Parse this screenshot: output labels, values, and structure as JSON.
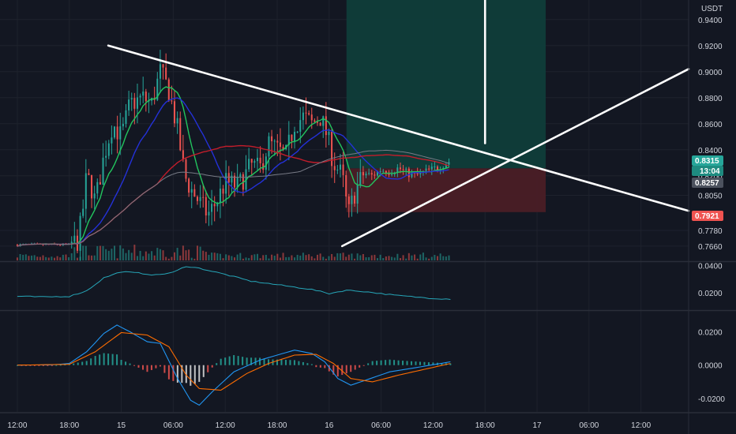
{
  "currency": "USDT",
  "colors": {
    "background": "#131722",
    "grid": "#1e222d",
    "up": "#26a69a",
    "down": "#ef5350",
    "ma_green": "#22c55e",
    "ma_blue": "#2431d9",
    "ma_red": "#c21d2b",
    "ma_gray": "#787b86",
    "rsi": "#26a6b8",
    "macd": "#2196f3",
    "signal": "#ff6d00",
    "target_zone": "#0f3d3a",
    "stop_zone": "#4a1e26",
    "trendline": "#ffffff"
  },
  "badges": {
    "current_price": "0.8315",
    "countdown": "13:04",
    "entry_price": "0.8257",
    "stop_price": "0.7921"
  },
  "chart_data": [
    {
      "type": "candlestick",
      "title": "",
      "ylabel": "USDT",
      "ylim": [
        0.755,
        0.955
      ],
      "y_ticks": [
        "0.7660",
        "0.7780",
        "0.8050",
        "0.8200",
        "0.8400",
        "0.8600",
        "0.8800",
        "0.9000",
        "0.9200",
        "0.9400"
      ],
      "y_tick_values": [
        0.766,
        0.778,
        0.805,
        0.82,
        0.84,
        0.86,
        0.88,
        0.9,
        0.92,
        0.94
      ],
      "x_ticks": [
        "12:00",
        "18:00",
        "15",
        "06:00",
        "12:00",
        "18:00",
        "16",
        "06:00",
        "12:00",
        "18:00",
        "17",
        "06:00",
        "12:00"
      ],
      "x_tick_hours": [
        0,
        6,
        12,
        18,
        24,
        30,
        36,
        42,
        48,
        54,
        60,
        66,
        72
      ],
      "x_range_hours": [
        -2.0,
        77.5
      ],
      "close_path": [
        [
          6.0,
          0.767
        ],
        [
          7.0,
          0.77
        ],
        [
          7.5,
          0.79
        ],
        [
          8.0,
          0.82
        ],
        [
          8.5,
          0.812
        ],
        [
          9.0,
          0.8
        ],
        [
          10.0,
          0.835
        ],
        [
          11.0,
          0.86
        ],
        [
          12.0,
          0.85
        ],
        [
          13.0,
          0.875
        ],
        [
          14.5,
          0.88
        ],
        [
          15.5,
          0.875
        ],
        [
          16.5,
          0.9
        ],
        [
          17.5,
          0.885
        ],
        [
          18.5,
          0.855
        ],
        [
          19.3,
          0.82
        ],
        [
          20.0,
          0.81
        ],
        [
          21.0,
          0.8
        ],
        [
          22.0,
          0.79
        ],
        [
          23.0,
          0.8
        ],
        [
          24.0,
          0.815
        ],
        [
          25.5,
          0.812
        ],
        [
          27.0,
          0.828
        ],
        [
          28.0,
          0.825
        ],
        [
          29.0,
          0.845
        ],
        [
          30.0,
          0.84
        ],
        [
          31.0,
          0.835
        ],
        [
          32.0,
          0.86
        ],
        [
          33.0,
          0.865
        ],
        [
          34.0,
          0.86
        ],
        [
          35.0,
          0.865
        ],
        [
          35.8,
          0.85
        ],
        [
          36.5,
          0.83
        ],
        [
          37.0,
          0.825
        ],
        [
          37.5,
          0.82
        ],
        [
          38.2,
          0.79
        ],
        [
          39.0,
          0.808
        ],
        [
          40.0,
          0.822
        ],
        [
          41.0,
          0.82
        ],
        [
          42.0,
          0.825
        ],
        [
          43.0,
          0.823
        ],
        [
          44.0,
          0.826
        ],
        [
          45.0,
          0.822
        ],
        [
          46.0,
          0.82
        ],
        [
          47.0,
          0.823
        ],
        [
          48.0,
          0.825
        ],
        [
          49.0,
          0.828
        ],
        [
          50.0,
          0.8315
        ]
      ],
      "moving_averages": [
        {
          "color": "ma_green",
          "period": 9
        },
        {
          "color": "ma_blue",
          "period": 20
        },
        {
          "color": "ma_red",
          "period": 50
        },
        {
          "color": "ma_gray",
          "period": 100
        }
      ],
      "trendlines": [
        {
          "from": [
            10.5,
            0.92
          ],
          "to": [
            77.5,
            0.793
          ]
        },
        {
          "from": [
            37.5,
            0.766
          ],
          "to": [
            77.5,
            0.902
          ]
        },
        {
          "from": [
            54.0,
            0.845
          ],
          "to": [
            54.0,
            0.955
          ]
        }
      ],
      "position": {
        "start_hour": 38.0,
        "end_hour": 61.0,
        "entry": 0.8257,
        "target_top": 0.955,
        "stop": 0.7921
      }
    },
    {
      "type": "line",
      "title": "",
      "ylim": [
        0.008,
        0.042
      ],
      "y_ticks": [
        "0.0200",
        "0.0400"
      ],
      "y_tick_values": [
        0.02,
        0.04
      ],
      "path": [
        [
          0.0,
          0.0175
        ],
        [
          3.0,
          0.017
        ],
        [
          6.0,
          0.0175
        ],
        [
          8.0,
          0.0215
        ],
        [
          10.0,
          0.031
        ],
        [
          12.0,
          0.0355
        ],
        [
          14.0,
          0.0345
        ],
        [
          16.0,
          0.033
        ],
        [
          18.0,
          0.035
        ],
        [
          19.5,
          0.0395
        ],
        [
          21.0,
          0.038
        ],
        [
          24.0,
          0.0335
        ],
        [
          27.0,
          0.0285
        ],
        [
          30.0,
          0.026
        ],
        [
          34.0,
          0.0225
        ],
        [
          36.0,
          0.0195
        ],
        [
          38.0,
          0.022
        ],
        [
          40.0,
          0.021
        ],
        [
          44.0,
          0.018
        ],
        [
          48.0,
          0.016
        ],
        [
          50.0,
          0.0155
        ]
      ]
    },
    {
      "type": "bar+line",
      "title": "",
      "ylim": [
        -0.028,
        0.032
      ],
      "y_ticks": [
        "-0.0200",
        "0.0000",
        "0.0200"
      ],
      "y_tick_values": [
        -0.02,
        0.0,
        0.02
      ],
      "macd_path": [
        [
          0.0,
          0.0
        ],
        [
          4.0,
          0.0002
        ],
        [
          6.0,
          0.001
        ],
        [
          8.0,
          0.008
        ],
        [
          10.0,
          0.019
        ],
        [
          11.5,
          0.024
        ],
        [
          13.0,
          0.02
        ],
        [
          15.0,
          0.014
        ],
        [
          16.5,
          0.013
        ],
        [
          18.5,
          -0.008
        ],
        [
          20.0,
          -0.021
        ],
        [
          21.0,
          -0.024
        ],
        [
          22.5,
          -0.016
        ],
        [
          25.0,
          -0.004
        ],
        [
          28.0,
          0.003
        ],
        [
          30.0,
          0.006
        ],
        [
          32.0,
          0.009
        ],
        [
          34.0,
          0.007
        ],
        [
          35.5,
          0.002
        ],
        [
          37.0,
          -0.008
        ],
        [
          38.5,
          -0.012
        ],
        [
          40.5,
          -0.0085
        ],
        [
          43.0,
          -0.004
        ],
        [
          46.0,
          -0.0015
        ],
        [
          50.0,
          0.002
        ]
      ],
      "signal_path": [
        [
          0.0,
          0.0
        ],
        [
          6.0,
          0.0005
        ],
        [
          9.0,
          0.008
        ],
        [
          12.0,
          0.0195
        ],
        [
          15.0,
          0.018
        ],
        [
          17.5,
          0.011
        ],
        [
          19.5,
          -0.006
        ],
        [
          21.0,
          -0.014
        ],
        [
          23.5,
          -0.015
        ],
        [
          26.5,
          -0.005
        ],
        [
          29.0,
          0.001
        ],
        [
          32.0,
          0.006
        ],
        [
          34.5,
          0.0065
        ],
        [
          36.5,
          0.001
        ],
        [
          38.5,
          -0.008
        ],
        [
          41.0,
          -0.01
        ],
        [
          44.0,
          -0.006
        ],
        [
          47.0,
          -0.0025
        ],
        [
          50.0,
          0.001
        ]
      ]
    }
  ]
}
